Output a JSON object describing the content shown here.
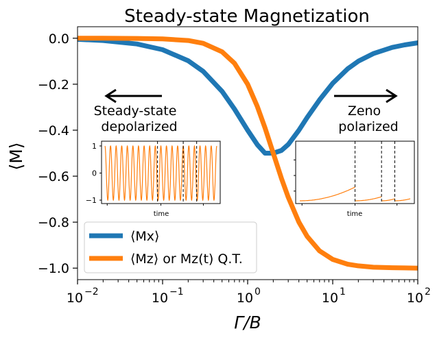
{
  "chart_data": {
    "type": "line",
    "title": "Steady-state Magnetization",
    "xlabel": "Γ/B",
    "ylabel": "⟨M⟩",
    "xscale": "log",
    "xlim": [
      0.01,
      100
    ],
    "ylim": [
      -1.05,
      0.05
    ],
    "grid": false,
    "legend_position": "bottom-left",
    "x_ticks": [
      {
        "value": 0.01,
        "base": "10",
        "exp": "−2"
      },
      {
        "value": 0.1,
        "base": "10",
        "exp": "−1"
      },
      {
        "value": 1,
        "base": "10",
        "exp": "0"
      },
      {
        "value": 10,
        "base": "10",
        "exp": "1"
      },
      {
        "value": 100,
        "base": "10",
        "exp": "2"
      }
    ],
    "y_ticks": [
      {
        "value": 0.0,
        "label": "0.0"
      },
      {
        "value": -0.2,
        "label": "−0.2"
      },
      {
        "value": -0.4,
        "label": "−0.4"
      },
      {
        "value": -0.6,
        "label": "−0.6"
      },
      {
        "value": -0.8,
        "label": "−0.8"
      },
      {
        "value": -1.0,
        "label": "−1.0"
      }
    ],
    "series": [
      {
        "name": "⟨Mx⟩",
        "color": "#1f77b4",
        "x": [
          0.01,
          0.02,
          0.05,
          0.1,
          0.2,
          0.3,
          0.5,
          0.7,
          1.0,
          1.3,
          1.6,
          2.0,
          2.5,
          3.0,
          4.0,
          5.0,
          7.0,
          10,
          15,
          20,
          30,
          50,
          70,
          100
        ],
        "y": [
          -0.005,
          -0.01,
          -0.025,
          -0.05,
          -0.098,
          -0.144,
          -0.231,
          -0.308,
          -0.4,
          -0.463,
          -0.5,
          -0.5,
          -0.488,
          -0.462,
          -0.4,
          -0.345,
          -0.268,
          -0.196,
          -0.133,
          -0.1,
          -0.067,
          -0.04,
          -0.029,
          -0.02
        ]
      },
      {
        "name": "⟨Mz⟩ or Mz(t) Q.T.",
        "color": "#ff7f0e",
        "x": [
          0.01,
          0.02,
          0.05,
          0.1,
          0.2,
          0.3,
          0.5,
          0.7,
          1.0,
          1.3,
          1.6,
          2.0,
          2.5,
          3.0,
          4.0,
          5.0,
          7.0,
          10,
          15,
          20,
          30,
          50,
          70,
          100
        ],
        "y": [
          0.0,
          0.0,
          -0.001,
          -0.003,
          -0.01,
          -0.022,
          -0.059,
          -0.109,
          -0.2,
          -0.297,
          -0.39,
          -0.5,
          -0.61,
          -0.692,
          -0.8,
          -0.862,
          -0.925,
          -0.962,
          -0.983,
          -0.99,
          -0.996,
          -0.998,
          -0.999,
          -1.0
        ]
      }
    ],
    "annotations": [
      {
        "id": "left",
        "line1": "Steady-state",
        "line2": "depolarized",
        "arrow": "left"
      },
      {
        "id": "right",
        "line1": "Zeno",
        "line2": "polarized",
        "arrow": "right"
      }
    ],
    "insets": [
      {
        "id": "left",
        "xlabel": "time",
        "y_ticks": [
          {
            "value": 1,
            "label": "1"
          },
          {
            "value": 0,
            "label": "0"
          },
          {
            "value": -1,
            "label": "−1"
          }
        ],
        "color": "#ff7f0e",
        "dashed_lines": [
          0.47,
          0.7,
          0.82
        ]
      },
      {
        "id": "right",
        "xlabel": "time",
        "color": "#ff7f0e",
        "dashed_lines": [
          0.5,
          0.74,
          0.86
        ]
      }
    ]
  }
}
